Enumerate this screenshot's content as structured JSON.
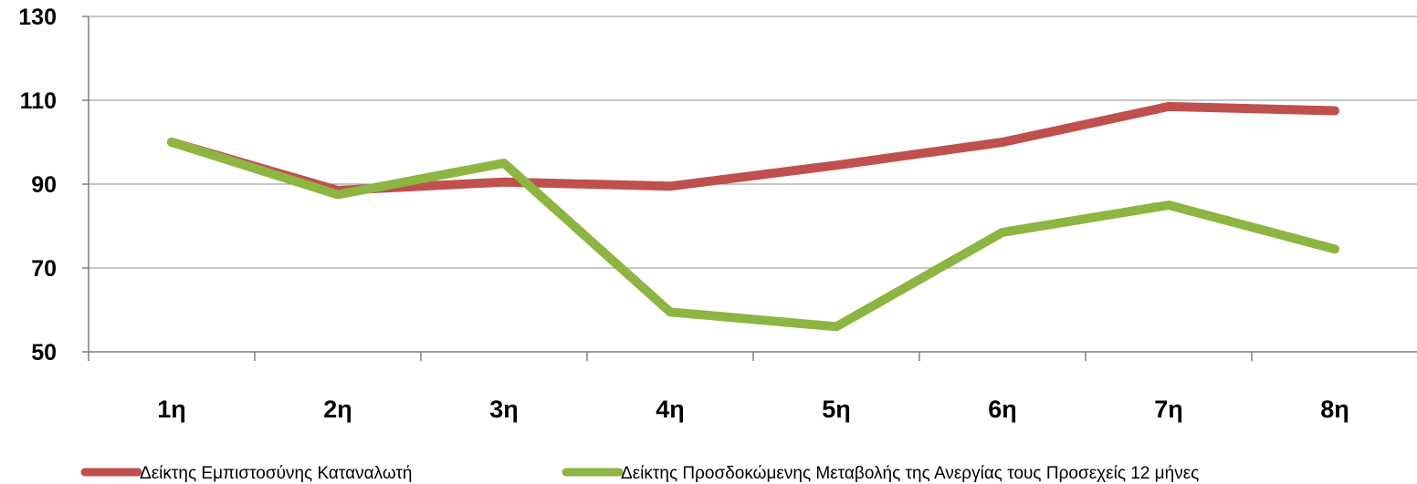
{
  "chart_data": {
    "type": "line",
    "title": "",
    "xlabel": "",
    "ylabel": "",
    "categories": [
      "1η",
      "2η",
      "3η",
      "4η",
      "5η",
      "6η",
      "7η",
      "8η"
    ],
    "ylim": [
      50,
      130
    ],
    "yticks": [
      "50",
      "70",
      "90",
      "110",
      "130"
    ],
    "grid": "horizontal",
    "legend_position": "bottom",
    "series": [
      {
        "name": "Δείκτης Εμπιστοσύνης Καταναλωτή",
        "color": "#C0504D",
        "values": [
          100,
          88.5,
          90.5,
          89.5,
          94.5,
          100,
          108.5,
          107.5
        ]
      },
      {
        "name": "Δείκτης Προσδοκώμενης Μεταβολής της Ανεργίας τους Προσεχείς 12 μήνες",
        "color": "#8DB542",
        "values": [
          100,
          87.5,
          95,
          59.5,
          56,
          78.5,
          85,
          74.5
        ]
      }
    ]
  }
}
